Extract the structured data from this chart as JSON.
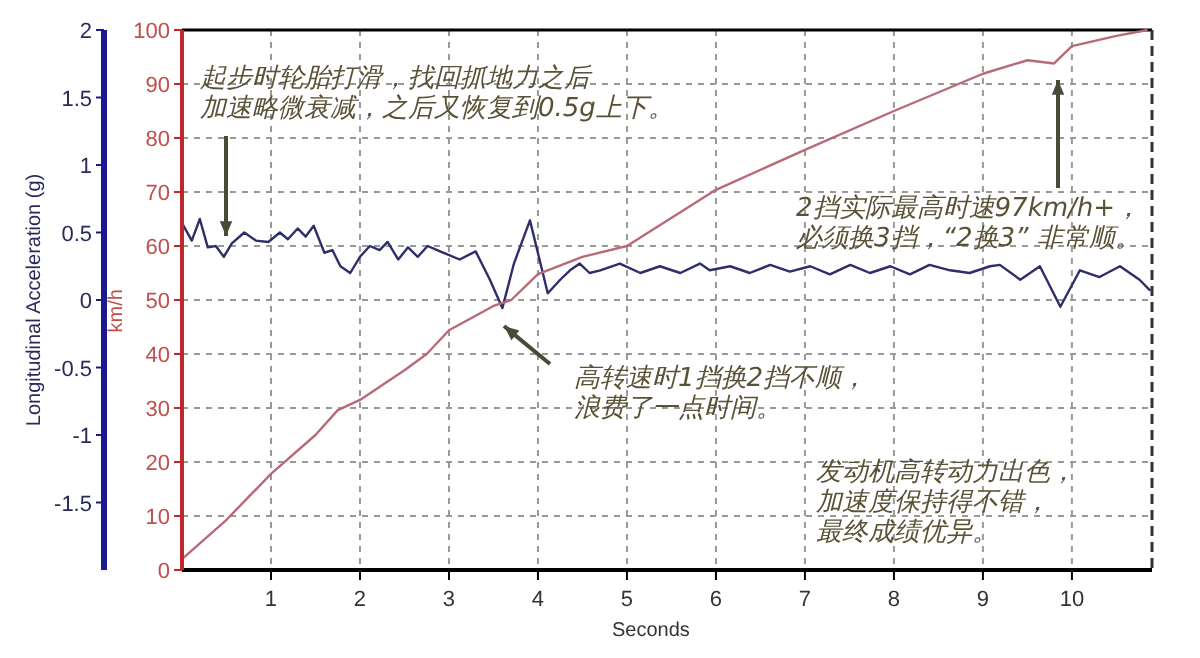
{
  "chart_data": {
    "type": "line",
    "xlabel": "Seconds",
    "ylabel": "Longitudinal Acceleration (g)",
    "y2label": "km/h",
    "xlim": [
      0,
      10.9
    ],
    "xticks": [
      1,
      2,
      3,
      4,
      5,
      6,
      7,
      8,
      9,
      10
    ],
    "ylim": [
      -2,
      2
    ],
    "yticks": [
      -1.5,
      -1,
      -0.5,
      0,
      0.5,
      1,
      1.5,
      2
    ],
    "y2lim": [
      0,
      100
    ],
    "y2ticks": [
      0,
      10,
      20,
      30,
      40,
      50,
      60,
      70,
      80,
      90,
      100
    ],
    "grid": true,
    "line_style": "solid",
    "marker": "none",
    "series": [
      {
        "color": "#2e2e6a",
        "x": [
          0,
          0.11,
          0.2,
          0.29,
          0.38,
          0.47,
          0.56,
          0.7,
          0.83,
          0.97,
          1.1,
          1.19,
          1.3,
          1.39,
          1.48,
          1.6,
          1.69,
          1.78,
          1.89,
          2.0,
          2.11,
          2.22,
          2.31,
          2.43,
          2.54,
          2.65,
          2.76,
          2.9,
          3.12,
          3.3,
          3.46,
          3.6,
          3.73,
          3.91,
          4.11,
          4.25,
          4.36,
          4.47,
          4.58,
          4.7,
          4.92,
          5.15,
          5.37,
          5.6,
          5.82,
          5.93,
          6.16,
          6.38,
          6.61,
          6.83,
          7.06,
          7.28,
          7.51,
          7.73,
          7.96,
          8.18,
          8.4,
          8.63,
          8.85,
          9.08,
          9.19,
          9.42,
          9.64,
          9.87,
          10.09,
          10.31,
          10.54,
          10.76,
          10.88
        ],
        "values": [
          0.57,
          0.44,
          0.6,
          0.39,
          0.4,
          0.32,
          0.42,
          0.5,
          0.44,
          0.43,
          0.5,
          0.45,
          0.53,
          0.47,
          0.55,
          0.35,
          0.37,
          0.25,
          0.2,
          0.32,
          0.4,
          0.37,
          0.43,
          0.3,
          0.39,
          0.32,
          0.4,
          0.36,
          0.3,
          0.36,
          0.15,
          -0.06,
          0.27,
          0.59,
          0.05,
          0.15,
          0.22,
          0.27,
          0.2,
          0.22,
          0.27,
          0.2,
          0.25,
          0.2,
          0.27,
          0.22,
          0.25,
          0.2,
          0.26,
          0.21,
          0.25,
          0.19,
          0.26,
          0.2,
          0.25,
          0.19,
          0.26,
          0.22,
          0.2,
          0.25,
          0.26,
          0.15,
          0.25,
          -0.05,
          0.22,
          0.17,
          0.25,
          0.15,
          0.07
        ]
      },
      {
        "color": "#b86a78",
        "axis": "y2",
        "x": [
          0,
          0.5,
          1,
          1.5,
          1.75,
          2,
          2.5,
          2.75,
          3,
          3.5,
          3.7,
          4,
          4.5,
          5,
          6,
          7,
          8,
          9,
          9.5,
          9.8,
          10,
          10.5,
          10.85
        ],
        "values": [
          2,
          9.3,
          17.8,
          25,
          29.6,
          31.5,
          37,
          40,
          44.4,
          48.9,
          50,
          54.8,
          58,
          60,
          70.4,
          77.8,
          85,
          91.9,
          94.4,
          93.8,
          97,
          98.9,
          100
        ]
      }
    ],
    "annotations": [
      "起步时轮胎打滑，找回抓地力之后加速略微衰减，之后又恢复到0.5g上下。",
      "2挡实际最高时速97km/h+，必须换3挡，“2换3” 非常顺。",
      "高转速时1挡换2挡不顺，浪费了一点时间。",
      "发动机高转动力出色，加速度保持得不错，最终成绩优异。"
    ]
  }
}
